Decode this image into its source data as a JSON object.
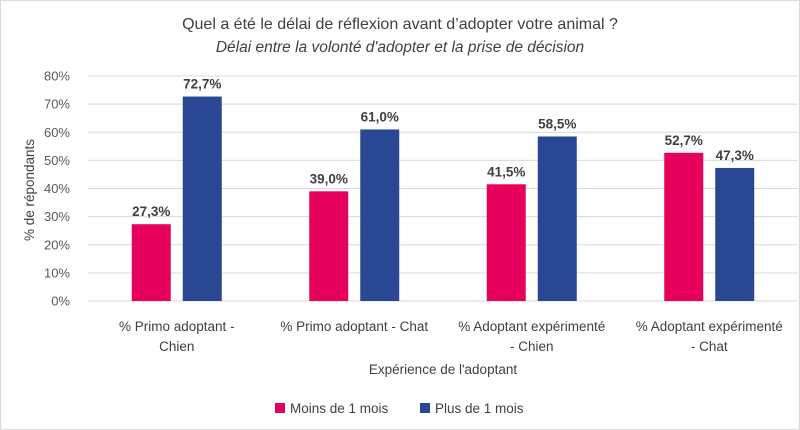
{
  "chart_data": {
    "type": "bar",
    "title": "Quel a été le délai de réflexion avant d’adopter votre animal ?",
    "subtitle": "Délai entre la volonté d'adopter et la prise de décision",
    "xlabel": "Expérience de l'adoptant",
    "ylabel": "% de répondants",
    "ylim": [
      0,
      80
    ],
    "yticks": [
      "0%",
      "10%",
      "20%",
      "30%",
      "40%",
      "50%",
      "60%",
      "70%",
      "80%"
    ],
    "grid": true,
    "legend_position": "bottom",
    "categories": [
      [
        "% Primo adoptant -",
        "Chien"
      ],
      [
        "% Primo adoptant - Chat"
      ],
      [
        "% Adoptant expérimenté",
        "- Chien"
      ],
      [
        "% Adoptant expérimenté",
        "- Chat"
      ]
    ],
    "series": [
      {
        "name": "Moins de 1 mois",
        "color": "#e8005d",
        "values": [
          27.3,
          39.0,
          41.5,
          52.7
        ],
        "labels": [
          "27,3%",
          "39,0%",
          "41,5%",
          "52,7%"
        ]
      },
      {
        "name": "Plus de 1 mois",
        "color": "#2a4793",
        "values": [
          72.7,
          61.0,
          58.5,
          47.3
        ],
        "labels": [
          "72,7%",
          "61,0%",
          "58,5%",
          "47,3%"
        ]
      }
    ]
  }
}
